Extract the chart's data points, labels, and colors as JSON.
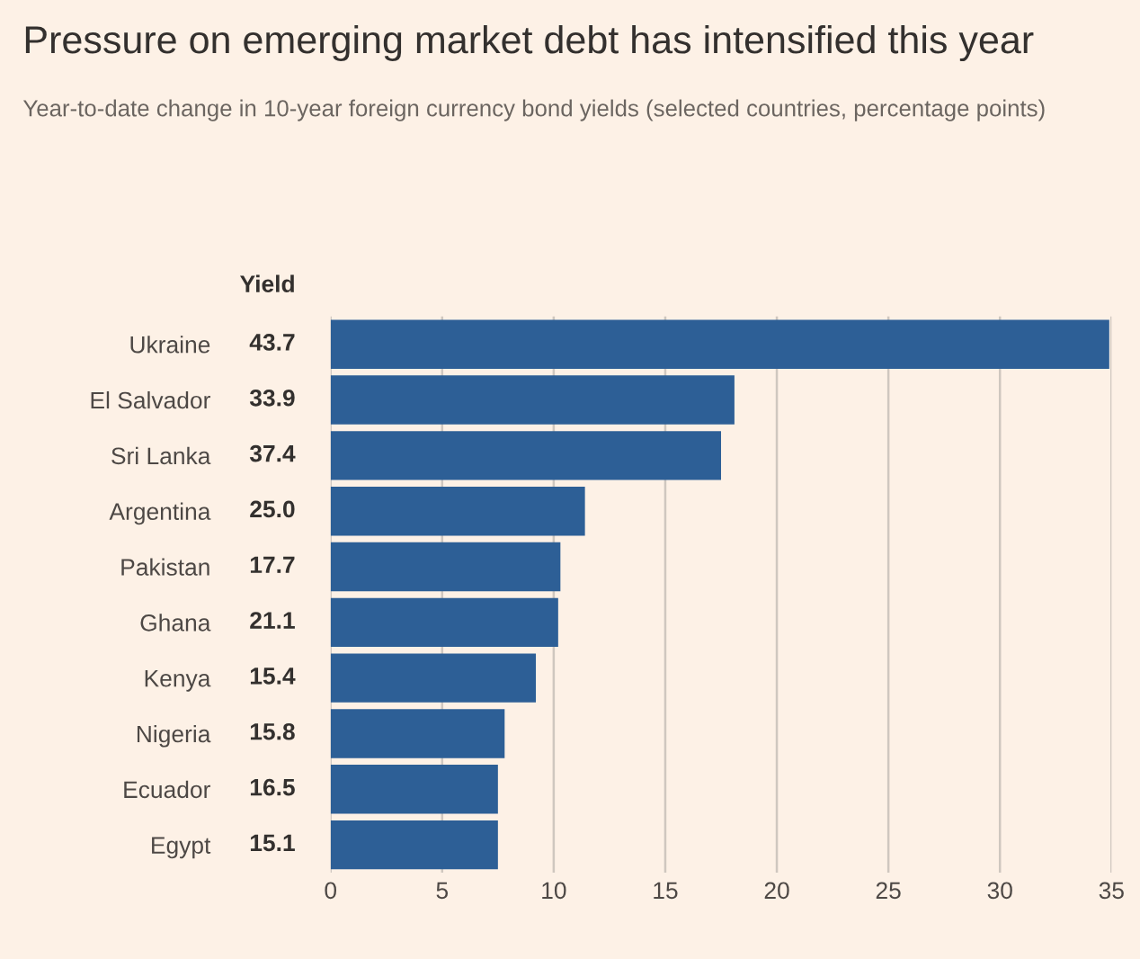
{
  "chart_data": {
    "type": "bar",
    "orientation": "horizontal",
    "title": "Pressure on emerging market debt has intensified this year",
    "subtitle": "Year-to-date change in 10-year foreign currency bond yields (selected countries, percentage points)",
    "categories": [
      "Ukraine",
      "El Salvador",
      "Sri Lanka",
      "Argentina",
      "Pakistan",
      "Ghana",
      "Kenya",
      "Nigeria",
      "Ecuador",
      "Egypt"
    ],
    "values": [
      34.9,
      18.1,
      17.5,
      11.4,
      10.3,
      10.2,
      9.2,
      7.8,
      7.5,
      7.5
    ],
    "color": "#2d5f96",
    "xlim": [
      0,
      35
    ],
    "xticks": [
      0,
      5,
      10,
      15,
      20,
      25,
      30,
      35
    ],
    "grid": "x",
    "annotations": [
      "Yield",
      "43.7",
      "33.9",
      "37.4",
      "25.0",
      "17.7",
      "21.1",
      "15.4",
      "15.8",
      "16.5",
      "15.1"
    ]
  }
}
